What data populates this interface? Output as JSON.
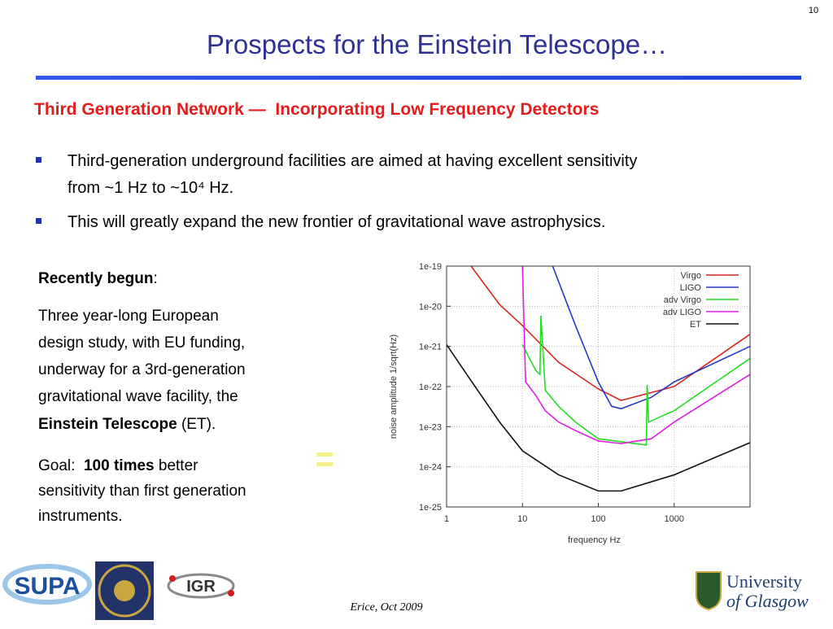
{
  "page_number": "10",
  "title": "Prospects for the Einstein Telescope…",
  "subtitle": "Third Generation Network —  Incorporating Low Frequency Detectors",
  "bullets": [
    [
      "Third-generation underground facilities are aimed at having excellent sensitivity",
      "from ~1 Hz to ~10⁴ Hz."
    ],
    [
      "This will greatly expand the new frontier of gravitational wave astrophysics."
    ]
  ],
  "left_column": {
    "heading": [
      "Recently begun",
      ":"
    ],
    "paragraph": [
      "Three year-long European",
      "design study, with EU funding,",
      "underway for a 3rd-generation",
      "gravitational wave facility, the"
    ],
    "paragraph_end": [
      "Einstein Telescope",
      " (ET)."
    ],
    "goal": [
      "Goal:  ",
      "100 times",
      " better"
    ],
    "goal_rest": [
      "sensitivity than first generation",
      "instruments."
    ]
  },
  "footer": "Erice, Oct 2009",
  "logos": {
    "supa": "SUPA",
    "igr": "IGR",
    "glasgow": [
      "University",
      "of Glasgow"
    ]
  },
  "chart_data": {
    "type": "line",
    "xlabel": "frequency Hz",
    "ylabel": "noise amplitude 1/sqrt(Hz)",
    "xscale": "log",
    "yscale": "log",
    "xlim": [
      1,
      10000
    ],
    "ylim": [
      1e-25,
      1e-19
    ],
    "xticks": [
      1,
      10,
      100,
      1000
    ],
    "yticks": [
      {
        "value": 1e-19,
        "label": "1e-19"
      },
      {
        "value": 1e-20,
        "label": "1e-20"
      },
      {
        "value": 1e-21,
        "label": "1e-21"
      },
      {
        "value": 1e-22,
        "label": "1e-22"
      },
      {
        "value": 1e-23,
        "label": "1e-23"
      },
      {
        "value": 1e-24,
        "label": "1e-24"
      },
      {
        "value": 1e-25,
        "label": "1e-25"
      }
    ],
    "grid": true,
    "legend": "upper right",
    "series": [
      {
        "name": "Virgo",
        "color": "#d7261e",
        "x": [
          2.1,
          5,
          10,
          30,
          100,
          200,
          1000,
          10000
        ],
        "values": [
          1e-19,
          1.1e-20,
          3.3e-21,
          4e-22,
          8.7e-23,
          4.5e-23,
          1e-22,
          2e-21
        ]
      },
      {
        "name": "LIGO",
        "color": "#2339c4",
        "x": [
          25,
          50,
          100,
          150,
          200,
          500,
          1000,
          10000
        ],
        "values": [
          1e-19,
          3.3e-21,
          1.3e-22,
          3.2e-23,
          2.8e-23,
          5.4e-23,
          1.3e-22,
          1e-21
        ]
      },
      {
        "name": "adv Virgo",
        "color": "#22dd22",
        "x": [
          10,
          15,
          17,
          17.5,
          20,
          30,
          50,
          100,
          300,
          430,
          440,
          460,
          1000,
          10000
        ],
        "values": [
          1.1e-21,
          2.5e-22,
          2e-22,
          5.8e-21,
          8e-23,
          3.2e-23,
          1.3e-23,
          5e-24,
          3.8e-24,
          3.5e-24,
          1.1e-22,
          1.3e-23,
          2.5e-23,
          5e-22
        ]
      },
      {
        "name": "adv LIGO",
        "color": "#e020e0",
        "x": [
          10,
          11,
          15,
          20,
          30,
          50,
          100,
          200,
          500,
          1000,
          10000
        ],
        "values": [
          1e-19,
          1.3e-22,
          6e-23,
          2.5e-23,
          1.3e-23,
          8e-24,
          4.4e-24,
          3.8e-24,
          5e-24,
          1.3e-23,
          2e-22
        ]
      },
      {
        "name": "ET",
        "color": "#111111",
        "x": [
          1,
          2,
          5,
          10,
          30,
          100,
          200,
          1000,
          10000
        ],
        "values": [
          1.1e-21,
          1.6e-22,
          1.3e-23,
          2.5e-24,
          6.3e-25,
          2.5e-25,
          2.5e-25,
          6.3e-25,
          4e-24
        ]
      }
    ]
  }
}
